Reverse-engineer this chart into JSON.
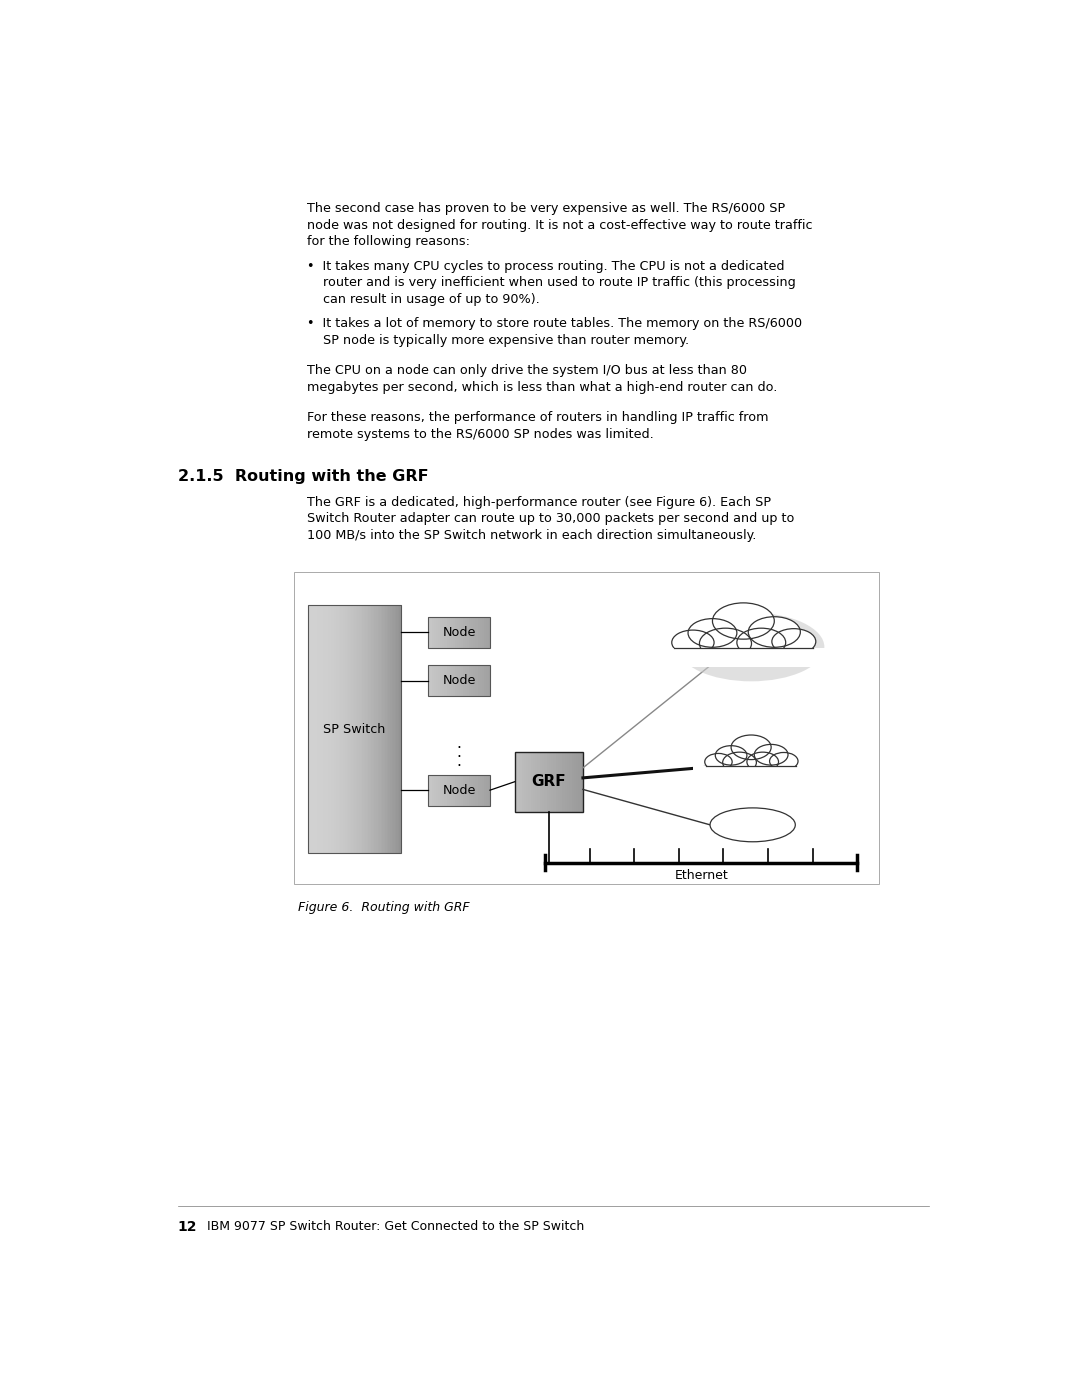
{
  "bg_color": "#ffffff",
  "page_width": 10.8,
  "page_height": 13.97,
  "text_color": "#000000",
  "body_font_size": 9.2,
  "section_heading": "2.1.5  Routing with the GRF",
  "figure_caption": "Figure 6.  Routing with GRF",
  "footer_num": "12",
  "footer_text": "IBM 9077 SP Switch Router: Get Connected to the SP Switch",
  "para1_lines": [
    "The second case has proven to be very expensive as well. The RS/6000 SP",
    "node was not designed for routing. It is not a cost-effective way to route traffic",
    "for the following reasons:"
  ],
  "bullet1_lines": [
    "•  It takes many CPU cycles to process routing. The CPU is not a dedicated",
    "    router and is very inefficient when used to route IP traffic (this processing",
    "    can result in usage of up to 90%)."
  ],
  "bullet2_lines": [
    "•  It takes a lot of memory to store route tables. The memory on the RS/6000",
    "    SP node is typically more expensive than router memory."
  ],
  "para2_lines": [
    "The CPU on a node can only drive the system I/O bus at less than 80",
    "megabytes per second, which is less than what a high-end router can do."
  ],
  "para3_lines": [
    "For these reasons, the performance of routers in handling IP traffic from",
    "remote systems to the RS/6000 SP nodes was limited."
  ],
  "section_body_lines": [
    "The GRF is a dedicated, high-performance router (see Figure 6). Each SP",
    "Switch Router adapter can route up to 30,000 packets per second and up to",
    "100 MB/s into the SP Switch network in each direction simultaneously."
  ]
}
